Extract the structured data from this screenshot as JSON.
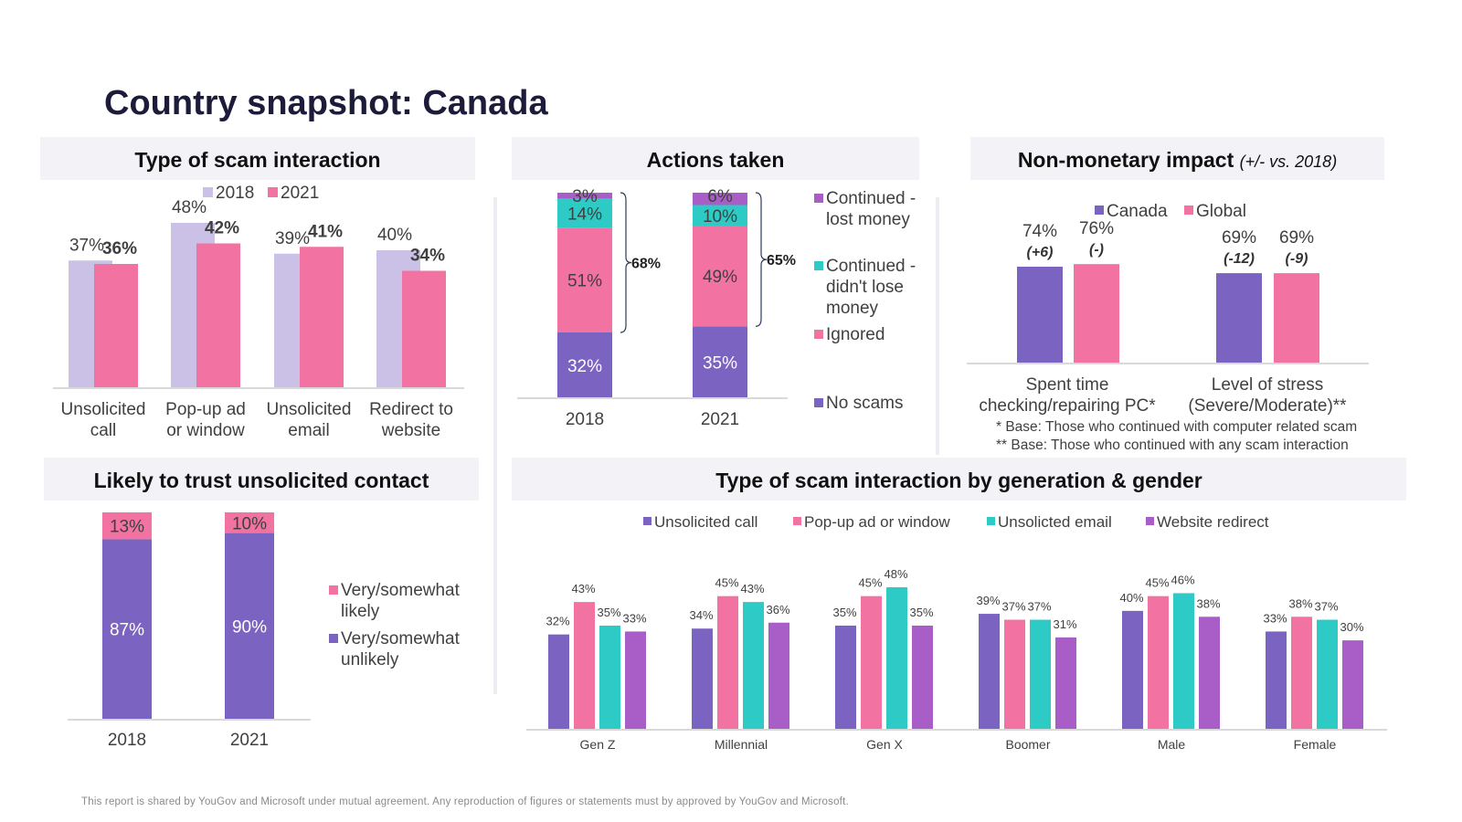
{
  "page": {
    "title": "Country snapshot: Canada",
    "footer": "This report is shared by YouGov and Microsoft under mutual agreement. Any reproduction of figures or statements must by approved by YouGov and Microsoft."
  },
  "colors": {
    "c2018": "#cbc1e6",
    "c2021": "#f272a1",
    "purple": "#7b63c2",
    "pink": "#f272a1",
    "teal": "#2ecbc6",
    "magenta": "#a95ec7",
    "panel": "#f2f2f7"
  },
  "chart_data": [
    {
      "id": "type_of_scam",
      "type": "bar",
      "title": "Type of scam interaction",
      "categories": [
        [
          "Unsolicited",
          "call"
        ],
        [
          "Pop-up ad",
          "or window"
        ],
        [
          "Unsolicited",
          "email"
        ],
        [
          "Redirect to",
          "website"
        ]
      ],
      "series": [
        {
          "name": "2018",
          "values": [
            37,
            48,
            39,
            40
          ],
          "labels": [
            "37%",
            "48%",
            "39%",
            "40%"
          ]
        },
        {
          "name": "2021",
          "values": [
            36,
            42,
            41,
            34
          ],
          "labels": [
            "36%",
            "42%",
            "41%",
            "34%"
          ]
        }
      ],
      "ylim": [
        0,
        60
      ]
    },
    {
      "id": "actions_taken",
      "type": "bar",
      "stacked": true,
      "title": "Actions taken",
      "categories": [
        "2018",
        "2021"
      ],
      "series": [
        {
          "name": "No scams",
          "values": [
            32,
            35
          ],
          "labels": [
            "32%",
            "35%"
          ]
        },
        {
          "name": "Ignored",
          "values": [
            51,
            49
          ],
          "labels": [
            "51%",
            "49%"
          ]
        },
        {
          "name": "Continued - didn't lose money",
          "values": [
            14,
            10
          ],
          "labels": [
            "14%",
            "10%"
          ]
        },
        {
          "name": "Continued - lost money",
          "values": [
            3,
            6
          ],
          "labels": [
            "3%",
            "6%"
          ]
        }
      ],
      "legend_lines": [
        [
          "Continued -",
          "lost money"
        ],
        [
          "Continued -",
          "didn't lose",
          "money"
        ],
        [
          "Ignored"
        ],
        [
          "No scams"
        ]
      ],
      "brackets": [
        "68%",
        "65%"
      ],
      "ylim": [
        0,
        100
      ]
    },
    {
      "id": "non_monetary",
      "type": "bar",
      "title": "Non-monetary impact",
      "subtitle": "(+/- vs. 2018)",
      "categories": [
        [
          "Spent time",
          "checking/repairing PC*"
        ],
        [
          "Level of stress",
          "(Severe/Moderate)**"
        ]
      ],
      "series": [
        {
          "name": "Canada",
          "values": [
            74,
            69
          ],
          "labels": [
            "74%",
            "69%"
          ],
          "changes": [
            "(+6)",
            "(-12)"
          ]
        },
        {
          "name": "Global",
          "values": [
            76,
            69
          ],
          "labels": [
            "76%",
            "69%"
          ],
          "changes": [
            "(-)",
            "(-9)"
          ]
        }
      ],
      "notes": [
        "* Base: Those who continued with computer related scam",
        "** Base: Those who continued with any scam interaction"
      ],
      "ylim": [
        0,
        100
      ]
    },
    {
      "id": "trust",
      "type": "bar",
      "stacked": true,
      "title": "Likely to trust unsolicited contact",
      "categories": [
        "2018",
        "2021"
      ],
      "series": [
        {
          "name": "Very/somewhat unlikely",
          "values": [
            87,
            90
          ],
          "labels": [
            "87%",
            "90%"
          ]
        },
        {
          "name": "Very/somewhat likely",
          "values": [
            13,
            10
          ],
          "labels": [
            "13%",
            "10%"
          ]
        }
      ],
      "legend_lines": [
        [
          "Very/somewhat",
          "likely"
        ],
        [
          "Very/somewhat",
          "unlikely"
        ]
      ],
      "ylim": [
        0,
        100
      ]
    },
    {
      "id": "by_generation",
      "type": "bar",
      "title": "Type of scam interaction by generation & gender",
      "categories": [
        "Gen Z",
        "Millennial",
        "Gen X",
        "Boomer",
        "Male",
        "Female"
      ],
      "series": [
        {
          "name": "Unsolicited call",
          "values": [
            32,
            34,
            35,
            39,
            40,
            33
          ],
          "labels": [
            "32%",
            "34%",
            "35%",
            "39%",
            "40%",
            "33%"
          ]
        },
        {
          "name": "Pop-up ad or window",
          "values": [
            43,
            45,
            45,
            37,
            45,
            38
          ],
          "labels": [
            "43%",
            "45%",
            "45%",
            "37%",
            "45%",
            "38%"
          ]
        },
        {
          "name": "Unsolicted email",
          "values": [
            35,
            43,
            48,
            37,
            46,
            37
          ],
          "labels": [
            "35%",
            "43%",
            "48%",
            "37%",
            "46%",
            "37%"
          ]
        },
        {
          "name": "Website redirect",
          "values": [
            33,
            36,
            35,
            31,
            38,
            30
          ],
          "labels": [
            "33%",
            "36%",
            "35%",
            "31%",
            "38%",
            "30%"
          ]
        }
      ],
      "ylim": [
        0,
        60
      ]
    }
  ]
}
